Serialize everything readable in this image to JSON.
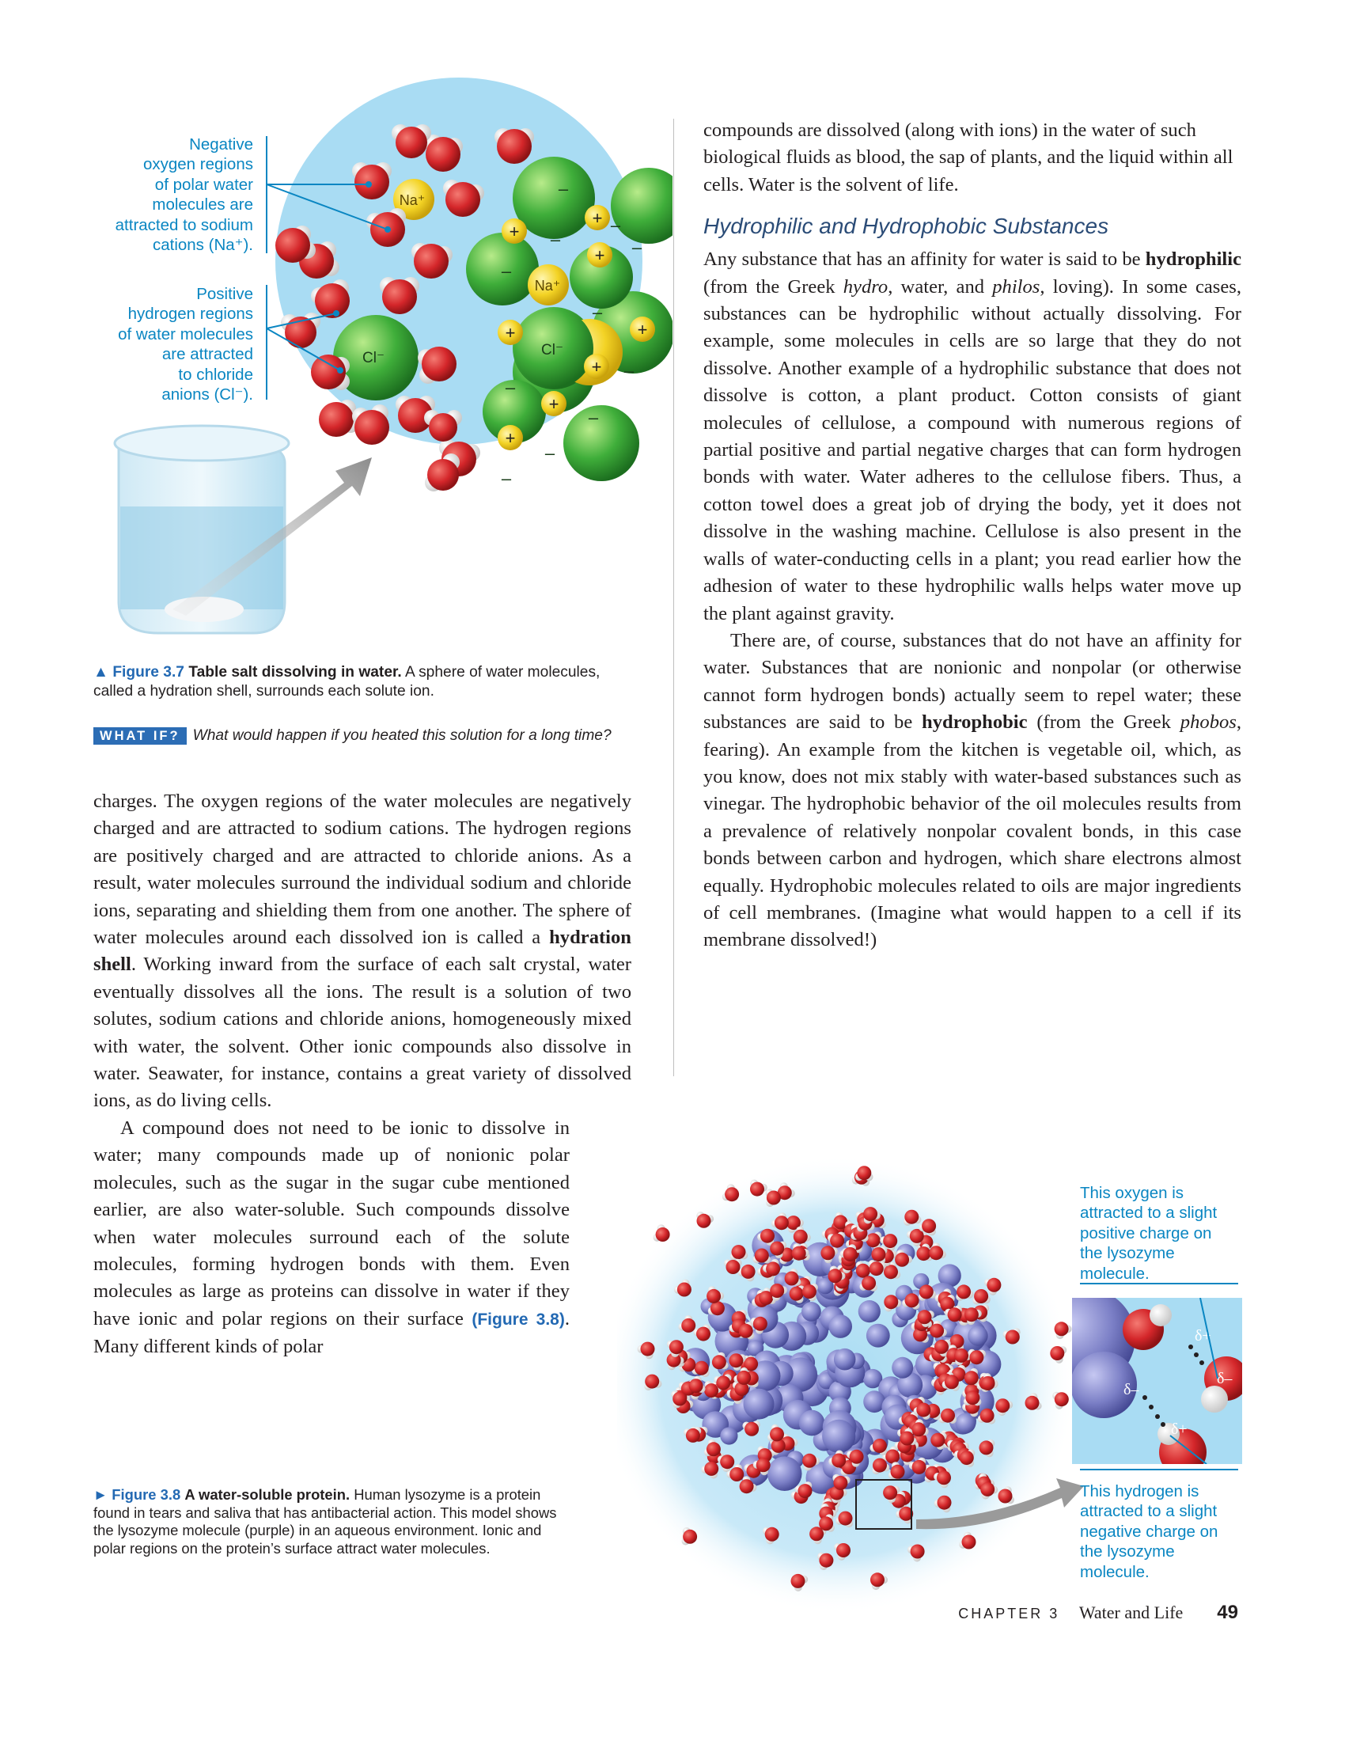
{
  "figure37": {
    "callout_negative": [
      "Negative",
      "oxygen regions",
      "of polar water",
      "molecules are",
      "attracted to sodium",
      "cations (Na⁺)."
    ],
    "callout_positive": [
      "Positive",
      "hydrogen regions",
      "of water molecules",
      "are attracted",
      "to chloride",
      "anions (Cl⁻)."
    ],
    "ion_na1": "Na⁺",
    "ion_na2": "Na⁺",
    "ion_cl1": "Cl⁻",
    "ion_cl2": "Cl⁻",
    "plus_sign": "+",
    "minus_sign": "–",
    "caption_label": "▲ Figure 3.7",
    "caption_title": "Table salt dissolving in water.",
    "caption_text": "A sphere of water molecules, called a hydration shell, surrounds each solute ion.",
    "whatif_tag": "WHAT IF?",
    "whatif_text": "What would happen if you heated this solution for a long time?"
  },
  "left_column": {
    "p1_a": "charges. The oxygen regions of the water molecules are negatively charged and are attracted to sodium cations. The hydrogen regions are positively charged and are attracted to chloride anions. As a result, water molecules surround the individual sodium and chloride ions, separating and shielding them from one another. The sphere of water molecules around each dissolved ion is called a",
    "p1_bold": "hydration shell",
    "p1_b": ". Working inward from the surface of each salt crystal, water eventually dissolves all the ions. The result is a solution of two solutes, sodium cations and chloride anions, homogeneously mixed with water, the solvent. Other ionic compounds also dissolve in water. Seawater, for instance, contains a great variety of dissolved ions, as do living cells.",
    "p2_a": "A compound does not need to be ionic to dissolve in water; many compounds made up of nonionic polar molecules, such as the sugar in the sugar cube mentioned earlier, are also water-soluble. Such compounds dissolve when water molecules surround each of the solute molecules, forming hydrogen bonds with them. Even molecules as large as proteins can dissolve in water if they have ionic and polar regions on their surface",
    "p2_ref": "(Figure 3.8)",
    "p2_b": ". Many different kinds of polar"
  },
  "right_column": {
    "p0": "compounds are dissolved (along with ions) in the water of such biological fluids as blood, the sap of plants, and the liquid within all cells. Water is the solvent of life.",
    "heading": "Hydrophilic and Hydrophobic Substances",
    "p1_a": "Any substance that has an affinity for water is said to be",
    "p1_bold": "hydrophilic",
    "p1_b": "(from the Greek",
    "p1_i1": "hydro",
    "p1_c": ", water, and",
    "p1_i2": "philos",
    "p1_d": ", loving). In some cases, substances can be hydrophilic without actually dissolving. For example, some molecules in cells are so large that they do not dissolve. Another example of a hydrophilic substance that does not dissolve is cotton, a plant product. Cotton consists of giant molecules of cellulose, a compound with numerous regions of partial positive and partial negative charges that can form hydrogen bonds with water. Water adheres to the cellulose fibers. Thus, a cotton towel does a great job of drying the body, yet it does not dissolve in the washing machine. Cellulose is also present in the walls of water-conducting cells in a plant; you read earlier how the adhesion of water to these hydrophilic walls helps water move up the plant against gravity.",
    "p2_a": "There are, of course, substances that do not have an affinity for water. Substances that are nonionic and nonpolar (or otherwise cannot form hydrogen bonds) actually seem to repel water; these substances are said to be",
    "p2_bold": "hydrophobic",
    "p2_b": "(from the Greek",
    "p2_i": "phobos",
    "p2_c": ", fearing). An example from the kitchen is vegetable oil, which, as you know, does not mix stably with water-based substances such as vinegar. The hydrophobic behavior of the oil molecules results from a prevalence of relatively nonpolar covalent bonds, in this case bonds between carbon and hydrogen, which share electrons almost equally. Hydrophobic molecules related to oils are major ingredients of cell membranes. (Imagine what would happen to a cell if its membrane dissolved!)"
  },
  "figure38": {
    "caption_label": "► Figure 3.8",
    "caption_title": "A water-soluble protein.",
    "caption_text": "Human lysozyme is a protein found in tears and saliva that has antibacterial action. This model shows the lysozyme molecule (purple) in an aqueous environment. Ionic and polar regions on the protein’s surface attract water molecules.",
    "callout_top": [
      "This oxygen is",
      "attracted to a slight",
      "positive charge on",
      "the lysozyme",
      "molecule."
    ],
    "callout_bottom": [
      "This hydrogen is",
      "attracted to a slight",
      "negative charge on",
      "the lysozyme",
      "molecule."
    ],
    "delta_plus": "δ+",
    "delta_minus": "δ–"
  },
  "footer": {
    "chapter": "CHAPTER 3",
    "title": "Water and Life",
    "page": "49"
  },
  "colors": {
    "callout_blue": "#0a86c2",
    "figure_label_blue": "#2369b3",
    "heading_blue": "#2b4c77",
    "water_bg": "#a9dcf3",
    "oxygen_red": "#d4262a",
    "chloride_green": "#3fae3a",
    "sodium_yellow": "#f3d325",
    "protein_purple": "#7b7fc6"
  }
}
